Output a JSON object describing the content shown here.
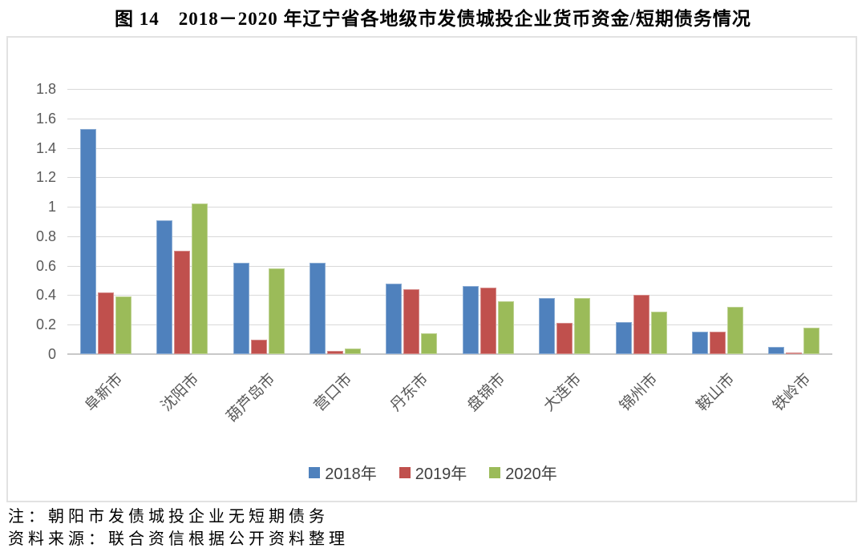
{
  "title": "图 14　2018－2020 年辽宁省各地级市发债城投企业货币资金/短期债务情况",
  "chart_data": {
    "type": "bar",
    "title": "图 14　2018－2020 年辽宁省各地级市发债城投企业货币资金/短期债务情况",
    "categories": [
      "阜新市",
      "沈阳市",
      "葫芦岛市",
      "营口市",
      "丹东市",
      "盘锦市",
      "大连市",
      "锦州市",
      "鞍山市",
      "铁岭市"
    ],
    "series": [
      {
        "name": "2018年",
        "color": "#4F81BD",
        "values": [
          1.53,
          0.91,
          0.62,
          0.62,
          0.48,
          0.46,
          0.38,
          0.22,
          0.15,
          0.05
        ]
      },
      {
        "name": "2019年",
        "color": "#C0504D",
        "values": [
          0.42,
          0.7,
          0.1,
          0.02,
          0.44,
          0.45,
          0.21,
          0.4,
          0.15,
          0.01
        ]
      },
      {
        "name": "2020年",
        "color": "#9BBB59",
        "values": [
          0.39,
          1.02,
          0.58,
          0.04,
          0.14,
          0.36,
          0.38,
          0.29,
          0.32,
          0.18
        ]
      }
    ],
    "xlabel": "",
    "ylabel": "",
    "ylim": [
      0,
      1.8
    ],
    "ytick_step": 0.2,
    "grid": true,
    "legend_position": "bottom",
    "xtick_rotation": 45
  },
  "notes": {
    "note": "注：朝阳市发债城投企业无短期债务",
    "source": "资料来源：联合资信根据公开资料整理"
  },
  "colors": {
    "series_2018": "#4F81BD",
    "series_2019": "#C0504D",
    "series_2020": "#9BBB59",
    "gridline": "#d9d9d9",
    "axis_text": "#595959",
    "legend_text": "#404040",
    "frame_border": "#e2e2e2"
  }
}
